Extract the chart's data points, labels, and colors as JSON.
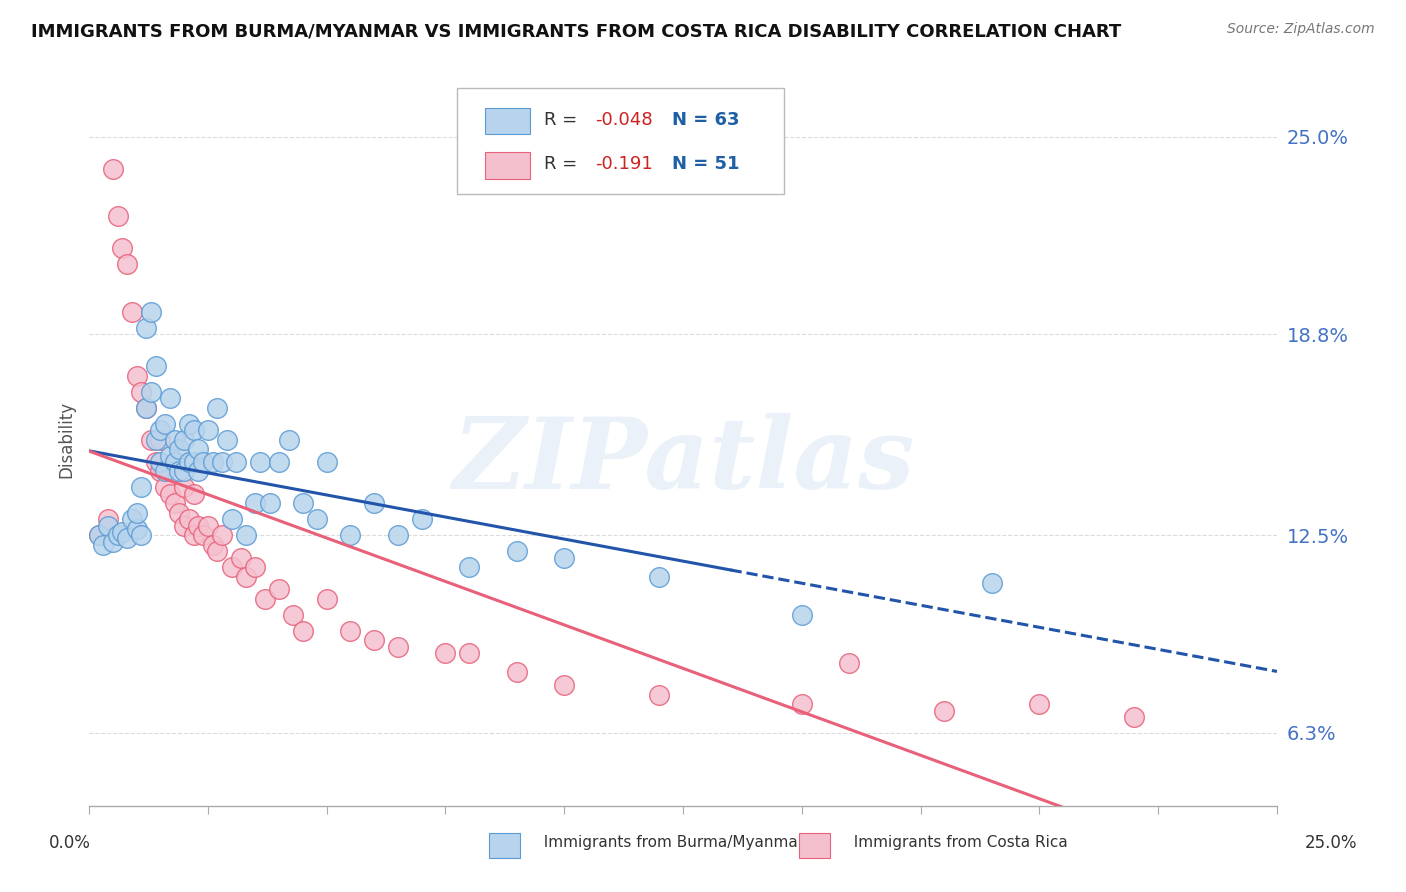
{
  "title": "IMMIGRANTS FROM BURMA/MYANMAR VS IMMIGRANTS FROM COSTA RICA DISABILITY CORRELATION CHART",
  "source": "Source: ZipAtlas.com",
  "ylabel": "Disability",
  "y_ticks": [
    0.063,
    0.125,
    0.188,
    0.25
  ],
  "y_tick_labels": [
    "6.3%",
    "12.5%",
    "18.8%",
    "25.0%"
  ],
  "xlim": [
    0.0,
    0.25
  ],
  "ylim": [
    0.04,
    0.27
  ],
  "watermark": "ZIPatlas",
  "background_color": "#ffffff",
  "grid_color": "#cccccc",
  "series1": {
    "label": "Immigrants from Burma/Myanmar",
    "color": "#b8d4ec",
    "edge_color": "#5b9bd5",
    "R": -0.048,
    "N": 63,
    "line_color": "#2255aa",
    "x": [
      0.002,
      0.003,
      0.004,
      0.005,
      0.006,
      0.007,
      0.008,
      0.009,
      0.01,
      0.01,
      0.011,
      0.011,
      0.012,
      0.012,
      0.013,
      0.013,
      0.014,
      0.014,
      0.015,
      0.015,
      0.016,
      0.016,
      0.017,
      0.017,
      0.018,
      0.018,
      0.019,
      0.019,
      0.02,
      0.02,
      0.021,
      0.021,
      0.022,
      0.022,
      0.023,
      0.023,
      0.024,
      0.025,
      0.026,
      0.027,
      0.028,
      0.029,
      0.03,
      0.031,
      0.033,
      0.035,
      0.036,
      0.038,
      0.04,
      0.042,
      0.045,
      0.048,
      0.05,
      0.055,
      0.06,
      0.065,
      0.07,
      0.08,
      0.09,
      0.1,
      0.12,
      0.15,
      0.19
    ],
    "y": [
      0.125,
      0.122,
      0.128,
      0.123,
      0.125,
      0.126,
      0.124,
      0.13,
      0.127,
      0.132,
      0.125,
      0.14,
      0.165,
      0.19,
      0.17,
      0.195,
      0.155,
      0.178,
      0.158,
      0.148,
      0.145,
      0.16,
      0.15,
      0.168,
      0.148,
      0.155,
      0.145,
      0.152,
      0.145,
      0.155,
      0.148,
      0.16,
      0.148,
      0.158,
      0.145,
      0.152,
      0.148,
      0.158,
      0.148,
      0.165,
      0.148,
      0.155,
      0.13,
      0.148,
      0.125,
      0.135,
      0.148,
      0.135,
      0.148,
      0.155,
      0.135,
      0.13,
      0.148,
      0.125,
      0.135,
      0.125,
      0.13,
      0.115,
      0.12,
      0.118,
      0.112,
      0.1,
      0.11
    ]
  },
  "series2": {
    "label": "Immigrants from Costa Rica",
    "color": "#f4c0ce",
    "edge_color": "#e8607a",
    "R": -0.191,
    "N": 51,
    "line_color": "#e8607a",
    "x": [
      0.002,
      0.004,
      0.005,
      0.006,
      0.007,
      0.008,
      0.009,
      0.01,
      0.011,
      0.012,
      0.013,
      0.014,
      0.015,
      0.015,
      0.016,
      0.017,
      0.018,
      0.019,
      0.02,
      0.02,
      0.021,
      0.022,
      0.022,
      0.023,
      0.024,
      0.025,
      0.026,
      0.027,
      0.028,
      0.03,
      0.032,
      0.033,
      0.035,
      0.037,
      0.04,
      0.043,
      0.045,
      0.05,
      0.055,
      0.06,
      0.065,
      0.075,
      0.08,
      0.09,
      0.1,
      0.12,
      0.15,
      0.16,
      0.18,
      0.2,
      0.22
    ],
    "y": [
      0.125,
      0.13,
      0.24,
      0.225,
      0.215,
      0.21,
      0.195,
      0.175,
      0.17,
      0.165,
      0.155,
      0.148,
      0.145,
      0.155,
      0.14,
      0.138,
      0.135,
      0.132,
      0.128,
      0.14,
      0.13,
      0.125,
      0.138,
      0.128,
      0.125,
      0.128,
      0.122,
      0.12,
      0.125,
      0.115,
      0.118,
      0.112,
      0.115,
      0.105,
      0.108,
      0.1,
      0.095,
      0.105,
      0.095,
      0.092,
      0.09,
      0.088,
      0.088,
      0.082,
      0.078,
      0.075,
      0.072,
      0.085,
      0.07,
      0.072,
      0.068
    ]
  }
}
